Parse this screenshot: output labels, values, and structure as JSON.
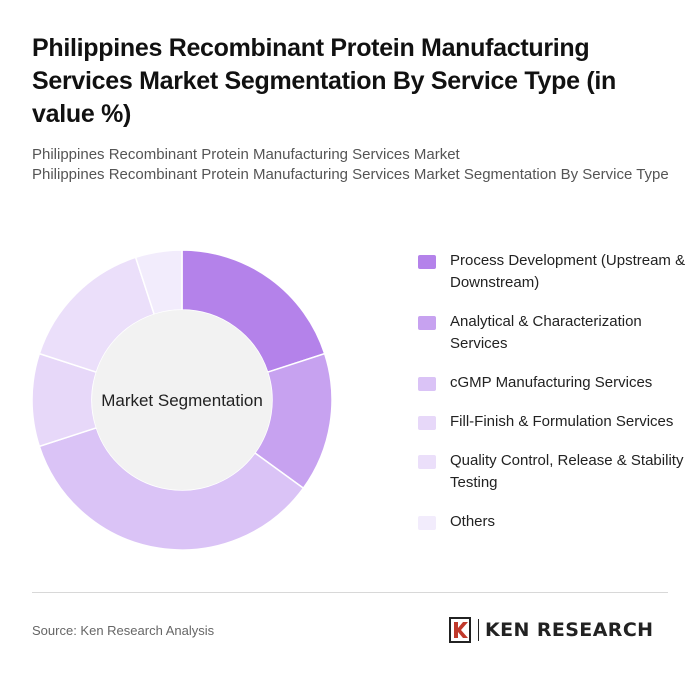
{
  "header": {
    "title": "Philippines Recombinant Protein Manufacturing Services Market Segmentation By Service Type (in value %)",
    "subtitle_line1": "Philippines Recombinant Protein Manufacturing Services Market",
    "subtitle_line2": "Philippines Recombinant Protein Manufacturing Services Market Segmentation By Service Type"
  },
  "chart_data": {
    "type": "pie",
    "center_label": "Market Segmentation",
    "categories": [
      "Process Development (Upstream & Downstream)",
      "Analytical & Characterization Services",
      "cGMP Manufacturing Services",
      "Fill-Finish & Formulation Services",
      "Quality Control, Release & Stability Testing",
      "Others"
    ],
    "values": [
      20,
      15,
      35,
      10,
      15,
      5
    ],
    "colors": [
      "#b482ea",
      "#c7a2f0",
      "#dac3f6",
      "#e7d8f9",
      "#ebdffa",
      "#f2ecfc"
    ],
    "legend_position": "right"
  },
  "footer": {
    "source": "Source: Ken Research Analysis",
    "logo_text": "KEN RESEARCH"
  }
}
